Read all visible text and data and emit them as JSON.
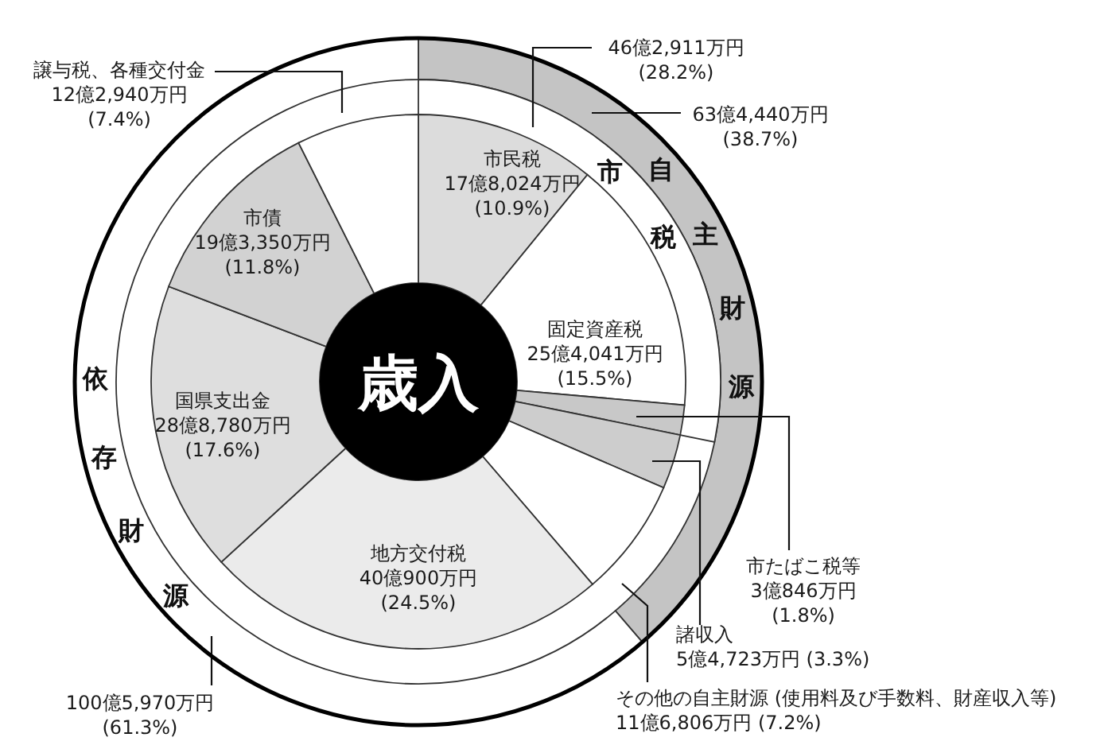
{
  "chart_data": [
    {
      "type": "donut",
      "title": "歳入",
      "categories": [
        "市民税",
        "固定資産税",
        "市たばこ税等",
        "諸収入",
        "その他の自主財源 (使用料及び手数料、財産収入等)",
        "地方交付税",
        "国県支出金",
        "市債",
        "譲与税、各種交付金"
      ],
      "values": [
        10.9,
        15.5,
        1.8,
        3.3,
        7.2,
        24.5,
        17.6,
        11.8,
        7.4
      ],
      "colors": [
        "#dcdcdc",
        "#ffffff",
        "#c8c8c8",
        "#cdcdcd",
        "#ffffff",
        "#ebebeb",
        "#dedede",
        "#d2d2d2",
        "#ffffff"
      ],
      "value_labels": [
        "17億8,024万円\n(10.9%)",
        "25億4,041万円\n(15.5%)",
        "3億846万円\n(1.8%)",
        "5億4,723万円 (3.3%)",
        "11億6,806万円 (7.2%)",
        "40億900万円\n(24.5%)",
        "28億8,780万円\n(17.6%)",
        "19億3,350万円\n(11.8%)",
        "12億2,940万円\n(7.4%)"
      ]
    },
    {
      "type": "pie",
      "categories": [
        "市税"
      ],
      "values": [
        28.2
      ],
      "colors": [
        "#ffffff"
      ],
      "value_labels": [
        "46億2,911万円\n(28.2%)"
      ]
    },
    {
      "type": "donut",
      "categories": [
        "自主財源",
        "依存財源"
      ],
      "values": [
        38.7,
        61.3
      ],
      "colors": [
        "#c4c4c4",
        "#ffffff"
      ],
      "value_labels": [
        "63億4,440万円\n(38.7%)",
        "100億5,970万円\n(61.3%)"
      ]
    }
  ]
}
